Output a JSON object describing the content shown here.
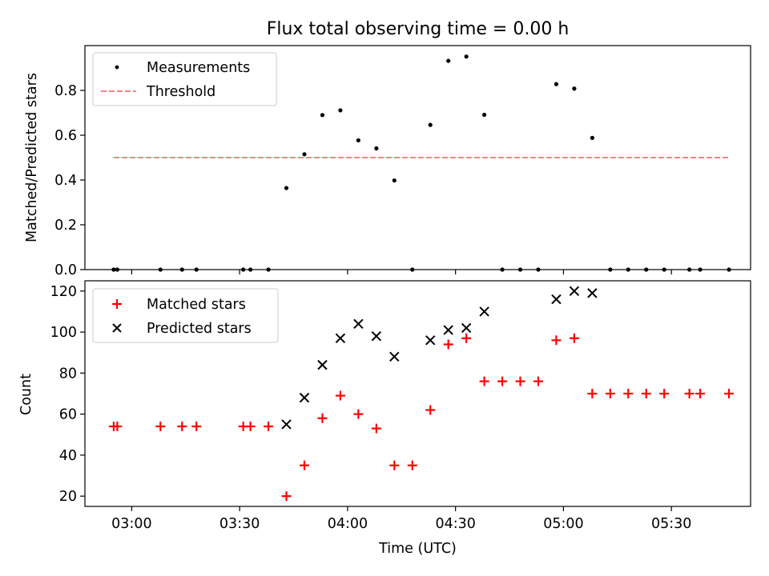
{
  "chart_data": [
    {
      "type": "scatter",
      "title": "Flux total observing time = 0.00 h",
      "xlabel": "",
      "ylabel": "Matched/Predicted stars",
      "xlim": [
        "02:47",
        "05:52"
      ],
      "ylim": [
        0,
        1.0
      ],
      "yticks": [
        0.0,
        0.2,
        0.4,
        0.6,
        0.8
      ],
      "ytick_labels": [
        "0.0",
        "0.2",
        "0.4",
        "0.6",
        "0.8"
      ],
      "xticks": [
        "03:00",
        "03:30",
        "04:00",
        "04:30",
        "05:00",
        "05:30"
      ],
      "legend": {
        "position": "top-left",
        "entries": [
          "Measurements",
          "Threshold"
        ]
      },
      "grid": false,
      "series": [
        {
          "name": "Measurements",
          "marker": "dot",
          "color": "#000000",
          "points": [
            {
              "x": "02:55",
              "y": 0.0
            },
            {
              "x": "02:56",
              "y": 0.0
            },
            {
              "x": "03:08",
              "y": 0.0
            },
            {
              "x": "03:14",
              "y": 0.0
            },
            {
              "x": "03:18",
              "y": 0.0
            },
            {
              "x": "03:31",
              "y": 0.0
            },
            {
              "x": "03:33",
              "y": 0.0
            },
            {
              "x": "03:38",
              "y": 0.0
            },
            {
              "x": "03:43",
              "y": 0.364
            },
            {
              "x": "03:48",
              "y": 0.515
            },
            {
              "x": "03:53",
              "y": 0.69
            },
            {
              "x": "03:58",
              "y": 0.711
            },
            {
              "x": "04:03",
              "y": 0.577
            },
            {
              "x": "04:08",
              "y": 0.541
            },
            {
              "x": "04:13",
              "y": 0.398
            },
            {
              "x": "04:18",
              "y": 0.0
            },
            {
              "x": "04:23",
              "y": 0.646
            },
            {
              "x": "04:28",
              "y": 0.932
            },
            {
              "x": "04:33",
              "y": 0.951
            },
            {
              "x": "04:38",
              "y": 0.691
            },
            {
              "x": "04:43",
              "y": 0.0
            },
            {
              "x": "04:48",
              "y": 0.0
            },
            {
              "x": "04:53",
              "y": 0.0
            },
            {
              "x": "04:58",
              "y": 0.828
            },
            {
              "x": "05:03",
              "y": 0.808
            },
            {
              "x": "05:08",
              "y": 0.588
            },
            {
              "x": "05:13",
              "y": 0.0
            },
            {
              "x": "05:18",
              "y": 0.0
            },
            {
              "x": "05:23",
              "y": 0.0
            },
            {
              "x": "05:28",
              "y": 0.0
            },
            {
              "x": "05:35",
              "y": 0.0
            },
            {
              "x": "05:38",
              "y": 0.0
            },
            {
              "x": "05:46",
              "y": 0.0
            }
          ]
        },
        {
          "name": "Threshold",
          "style": "dashed",
          "color": "#ff7f7f",
          "points": [
            {
              "x": "02:55",
              "y": 0.5
            },
            {
              "x": "05:46",
              "y": 0.5
            }
          ]
        }
      ]
    },
    {
      "type": "scatter",
      "title": "",
      "xlabel": "Time (UTC)",
      "ylabel": "Count",
      "xlim": [
        "02:47",
        "05:52"
      ],
      "ylim": [
        15,
        125
      ],
      "yticks": [
        20,
        40,
        60,
        80,
        100,
        120
      ],
      "ytick_labels": [
        "20",
        "40",
        "60",
        "80",
        "100",
        "120"
      ],
      "xticks": [
        "03:00",
        "03:30",
        "04:00",
        "04:30",
        "05:00",
        "05:30"
      ],
      "xtick_labels": [
        "03:00",
        "03:30",
        "04:00",
        "04:30",
        "05:00",
        "05:30"
      ],
      "legend": {
        "position": "top-left",
        "entries": [
          "Matched stars",
          "Predicted stars"
        ]
      },
      "grid": false,
      "series": [
        {
          "name": "Matched stars",
          "marker": "plus",
          "color": "#ff0000",
          "points": [
            {
              "x": "02:55",
              "y": 54
            },
            {
              "x": "02:56",
              "y": 54
            },
            {
              "x": "03:08",
              "y": 54
            },
            {
              "x": "03:14",
              "y": 54
            },
            {
              "x": "03:18",
              "y": 54
            },
            {
              "x": "03:31",
              "y": 54
            },
            {
              "x": "03:33",
              "y": 54
            },
            {
              "x": "03:38",
              "y": 54
            },
            {
              "x": "03:43",
              "y": 20
            },
            {
              "x": "03:48",
              "y": 35
            },
            {
              "x": "03:53",
              "y": 58
            },
            {
              "x": "03:58",
              "y": 69
            },
            {
              "x": "04:03",
              "y": 60
            },
            {
              "x": "04:08",
              "y": 53
            },
            {
              "x": "04:13",
              "y": 35
            },
            {
              "x": "04:18",
              "y": 35
            },
            {
              "x": "04:23",
              "y": 62
            },
            {
              "x": "04:28",
              "y": 94
            },
            {
              "x": "04:33",
              "y": 97
            },
            {
              "x": "04:38",
              "y": 76
            },
            {
              "x": "04:43",
              "y": 76
            },
            {
              "x": "04:48",
              "y": 76
            },
            {
              "x": "04:53",
              "y": 76
            },
            {
              "x": "04:58",
              "y": 96
            },
            {
              "x": "05:03",
              "y": 97
            },
            {
              "x": "05:08",
              "y": 70
            },
            {
              "x": "05:13",
              "y": 70
            },
            {
              "x": "05:18",
              "y": 70
            },
            {
              "x": "05:23",
              "y": 70
            },
            {
              "x": "05:28",
              "y": 70
            },
            {
              "x": "05:35",
              "y": 70
            },
            {
              "x": "05:38",
              "y": 70
            },
            {
              "x": "05:46",
              "y": 70
            }
          ]
        },
        {
          "name": "Predicted stars",
          "marker": "x",
          "color": "#000000",
          "points": [
            {
              "x": "03:43",
              "y": 55
            },
            {
              "x": "03:48",
              "y": 68
            },
            {
              "x": "03:53",
              "y": 84
            },
            {
              "x": "03:58",
              "y": 97
            },
            {
              "x": "04:03",
              "y": 104
            },
            {
              "x": "04:08",
              "y": 98
            },
            {
              "x": "04:13",
              "y": 88
            },
            {
              "x": "04:23",
              "y": 96
            },
            {
              "x": "04:28",
              "y": 101
            },
            {
              "x": "04:33",
              "y": 102
            },
            {
              "x": "04:38",
              "y": 110
            },
            {
              "x": "04:58",
              "y": 116
            },
            {
              "x": "05:03",
              "y": 120
            },
            {
              "x": "05:08",
              "y": 119
            }
          ]
        }
      ]
    }
  ]
}
